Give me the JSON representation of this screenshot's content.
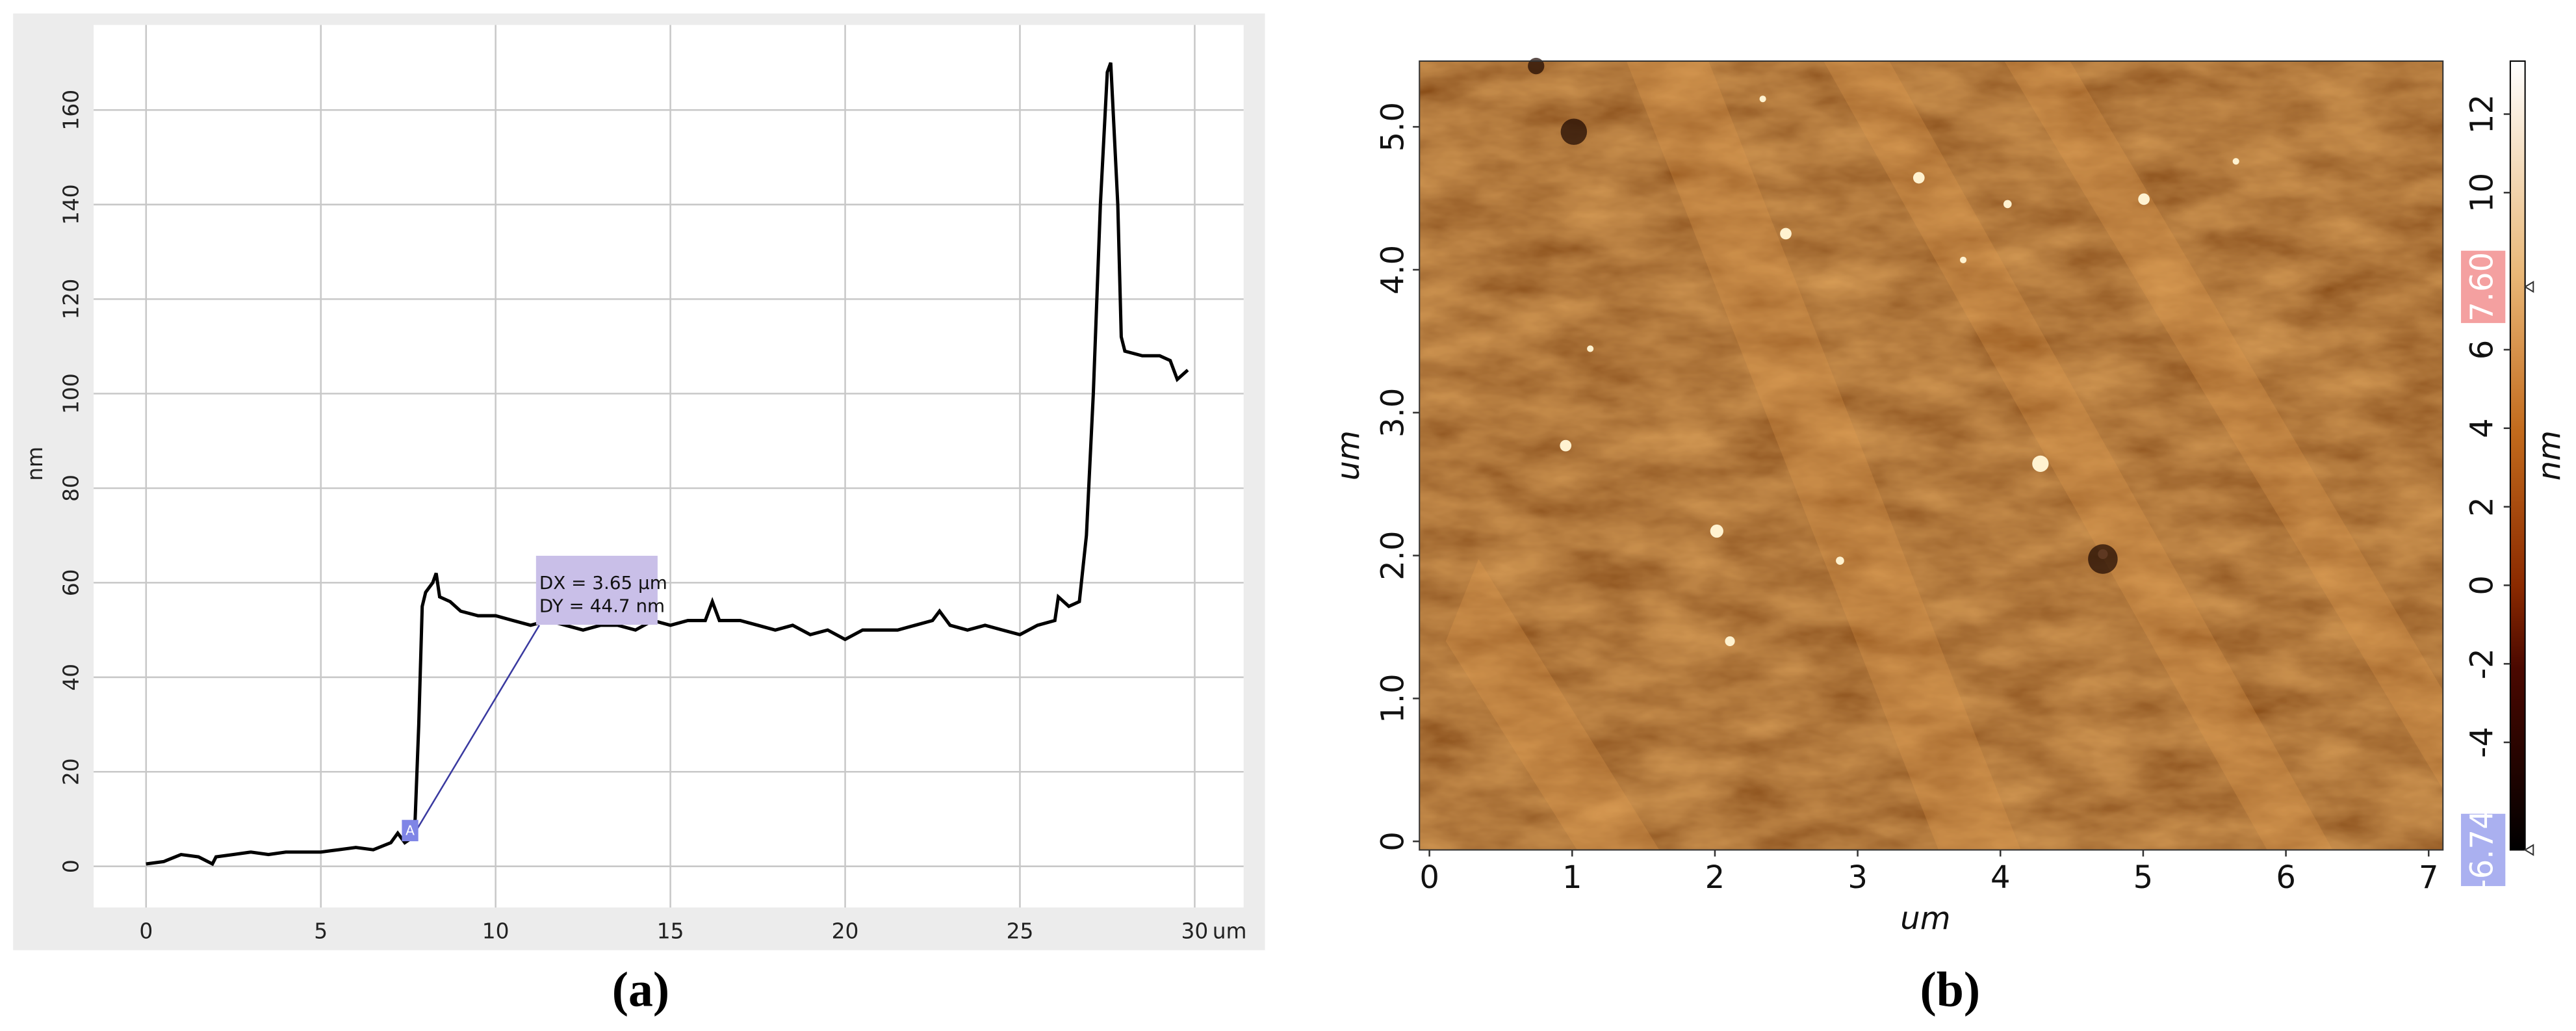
{
  "chart_data": [
    {
      "type": "line",
      "caption": "(a)",
      "x_label": "um",
      "y_label": "nm",
      "color": "#000000",
      "grid": true,
      "xlim": [
        -1.5,
        31.4
      ],
      "ylim": [
        -8.7,
        178
      ],
      "xticks": [
        0,
        5,
        10,
        15,
        20,
        25,
        30
      ],
      "yticks": [
        0,
        20,
        40,
        60,
        80,
        100,
        120,
        140,
        160
      ],
      "x": [
        0,
        0.5,
        1,
        1.5,
        1.9,
        2,
        2.5,
        3,
        3.5,
        4,
        4.5,
        5,
        5.5,
        6,
        6.5,
        7,
        7.2,
        7.4,
        7.6,
        7.7,
        7.8,
        7.9,
        8,
        8.2,
        8.3,
        8.4,
        8.7,
        9,
        9.5,
        10,
        10.5,
        11,
        11.5,
        12,
        12.5,
        13,
        13.5,
        14,
        14.5,
        15,
        15.5,
        16,
        16.2,
        16.4,
        17,
        17.5,
        18,
        18.5,
        19,
        19.5,
        20,
        20.5,
        21,
        21.5,
        22,
        22.5,
        22.7,
        23,
        23.5,
        24,
        24.5,
        25,
        25.5,
        26,
        26.1,
        26.4,
        26.7,
        26.9,
        27.1,
        27.3,
        27.5,
        27.6,
        27.8,
        27.9,
        28,
        28.5,
        29,
        29.3,
        29.5,
        29.8
      ],
      "values": [
        0.5,
        1,
        2.5,
        2,
        0.5,
        2,
        2.5,
        3,
        2.5,
        3,
        3,
        3,
        3.5,
        4,
        3.5,
        5,
        7,
        5,
        6,
        10,
        30,
        55,
        58,
        60,
        62,
        57,
        56,
        54,
        53,
        53,
        52,
        51,
        52,
        51,
        50,
        51,
        51,
        50,
        52,
        51,
        52,
        52,
        56,
        52,
        52,
        51,
        50,
        51,
        49,
        50,
        48,
        50,
        50,
        50,
        51,
        52,
        54,
        51,
        50,
        51,
        50,
        49,
        51,
        52,
        57,
        55,
        56,
        70,
        100,
        140,
        168,
        170,
        140,
        112,
        109,
        108,
        108,
        107,
        103,
        105
      ],
      "annotation": {
        "marker": "A",
        "text": [
          "DX = 3.65 µm",
          "DY = 44.7 nm"
        ],
        "from": [
          7.6,
          6
        ],
        "to": [
          11.25,
          51
        ]
      }
    },
    {
      "type": "heatmap",
      "caption": "(b)",
      "x_label": "um",
      "y_label": "um",
      "xlim": [
        -0.07,
        7.1
      ],
      "ylim": [
        -0.06,
        5.46
      ],
      "xticks": [
        0,
        1,
        2,
        3,
        4,
        5,
        6,
        7
      ],
      "yticks": [
        0,
        {
          "value": 1,
          "label": "1.0"
        },
        {
          "value": 2,
          "label": "2.0"
        },
        {
          "value": 3,
          "label": "3.0"
        },
        {
          "value": 4,
          "label": "4.0"
        },
        {
          "value": 5,
          "label": "5.0"
        }
      ],
      "colorbar": {
        "label": "nm",
        "lim": [
          -6.74,
          13.35
        ],
        "ticks": [
          -4,
          -2,
          0,
          2,
          4,
          6,
          10,
          12
        ],
        "markers": [
          {
            "value": 7.6,
            "label": "7.60",
            "color": "#f4a0a0"
          },
          {
            "value": -6.74,
            "label": "-6.74",
            "color": "#aab0f0"
          }
        ]
      }
    }
  ]
}
